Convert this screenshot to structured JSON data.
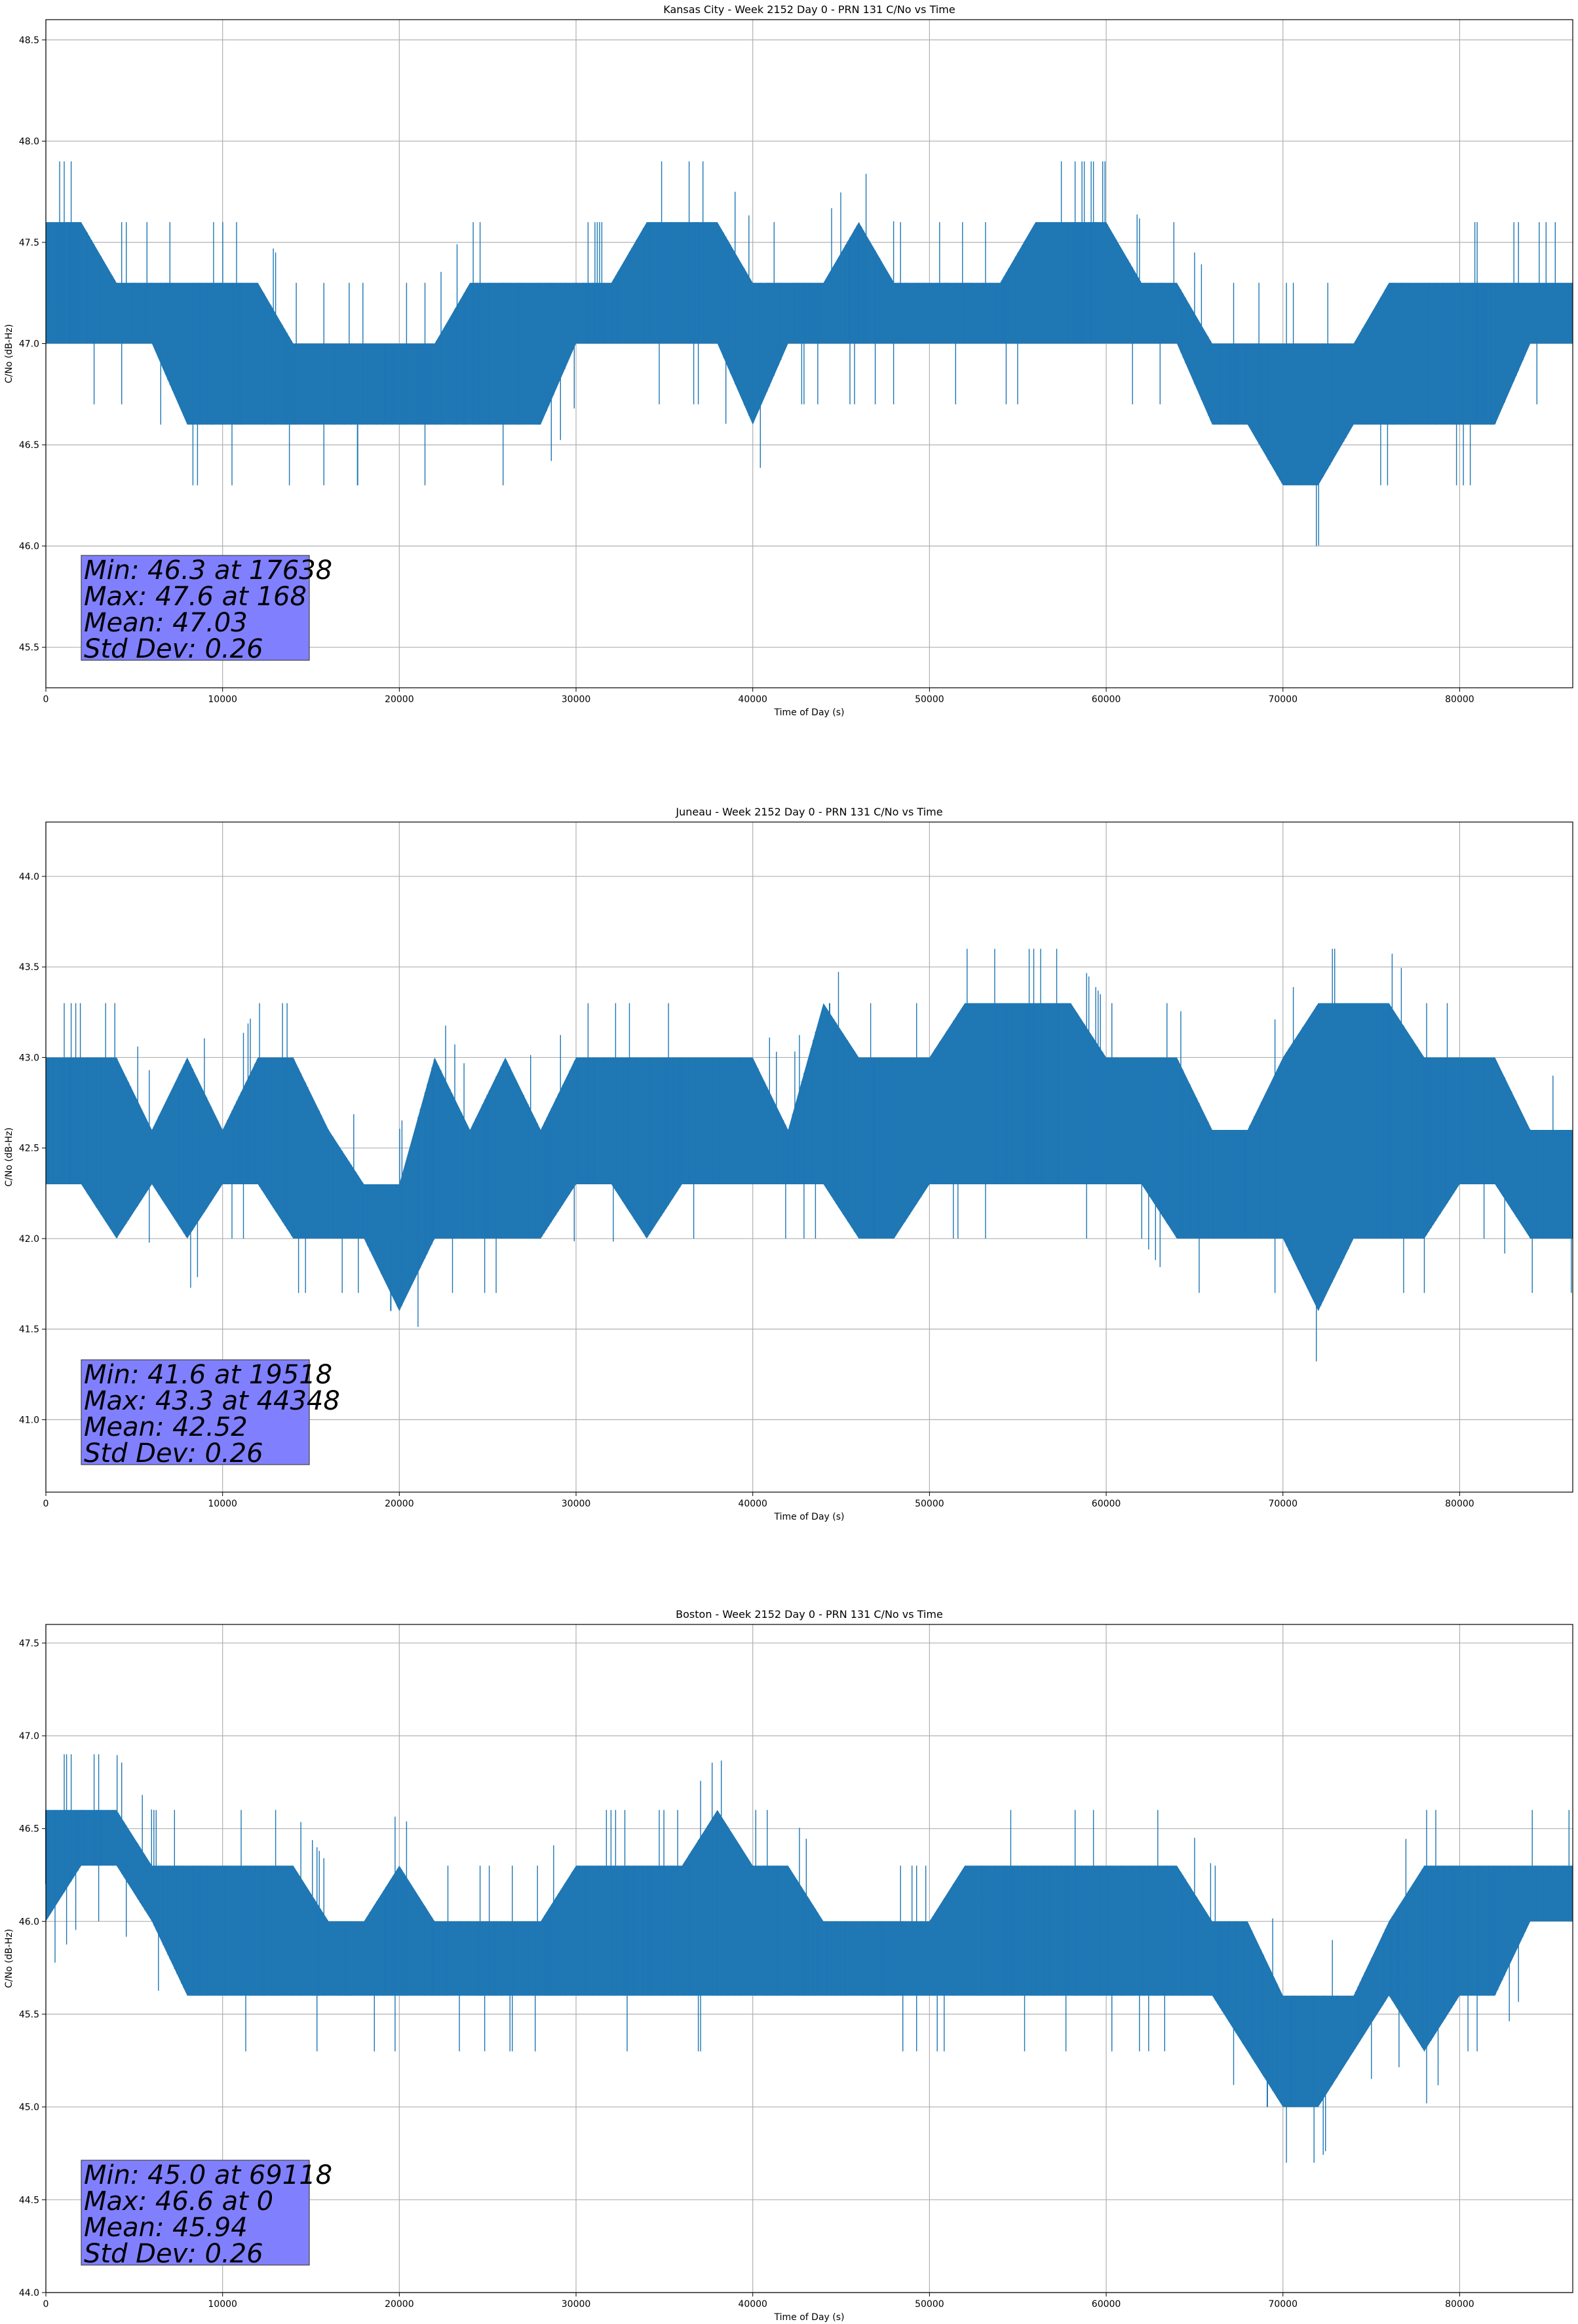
{
  "chart_data": [
    {
      "type": "line",
      "title": "Kansas City - Week 2152 Day 0 - PRN 131 C/No vs Time",
      "xlabel": "Time of Day (s)",
      "ylabel": "C/No (dB-Hz)",
      "xlim": [
        0,
        86400
      ],
      "ylim": [
        45.3,
        48.6
      ],
      "xticks": [
        0,
        10000,
        20000,
        30000,
        40000,
        50000,
        60000,
        70000,
        80000
      ],
      "yticks": [
        45.5,
        46.0,
        46.5,
        47.0,
        47.5,
        48.0,
        48.5
      ],
      "ytick_labels": [
        "45.5",
        "46.0",
        "46.5",
        "47.0",
        "47.5",
        "48.0",
        "48.5"
      ],
      "grid": true,
      "series_color": "#1f77b4",
      "annotation_color": "#8080ff",
      "stats": [
        "Min: 46.3 at 17638",
        "Max: 47.6 at 168",
        "Mean: 47.03",
        "Std Dev: 0.26"
      ],
      "series": [
        {
          "x": [
            0,
            2000,
            4000,
            6000,
            8000,
            10000,
            12000,
            14000,
            16000,
            18000,
            20000,
            22000,
            24000,
            26000,
            28000,
            30000,
            32000,
            34000,
            36000,
            38000,
            40000,
            42000,
            44000,
            46000,
            48000,
            50000,
            52000,
            54000,
            56000,
            58000,
            60000,
            62000,
            64000,
            66000,
            68000,
            70000,
            72000,
            74000,
            76000,
            78000,
            80000,
            82000,
            84000,
            86400
          ],
          "low": [
            47.0,
            47.0,
            47.0,
            47.0,
            46.6,
            46.6,
            46.6,
            46.6,
            46.6,
            46.6,
            46.6,
            46.6,
            46.6,
            46.6,
            46.6,
            47.0,
            47.0,
            47.0,
            47.0,
            47.0,
            46.6,
            47.0,
            47.0,
            47.0,
            47.0,
            47.0,
            47.0,
            47.0,
            47.0,
            47.0,
            47.0,
            47.0,
            47.0,
            46.6,
            46.6,
            46.3,
            46.3,
            46.6,
            46.6,
            46.6,
            46.6,
            46.6,
            47.0,
            47.0
          ],
          "high": [
            47.6,
            47.6,
            47.3,
            47.3,
            47.3,
            47.3,
            47.3,
            47.0,
            47.0,
            47.0,
            47.0,
            47.0,
            47.3,
            47.3,
            47.3,
            47.3,
            47.3,
            47.6,
            47.6,
            47.6,
            47.3,
            47.3,
            47.3,
            47.6,
            47.3,
            47.3,
            47.3,
            47.3,
            47.6,
            47.6,
            47.6,
            47.3,
            47.3,
            47.0,
            47.0,
            47.0,
            47.0,
            47.0,
            47.3,
            47.3,
            47.3,
            47.3,
            47.3,
            47.3
          ],
          "min_point": [
            17638,
            46.3
          ],
          "max_point": [
            168,
            47.6
          ]
        }
      ]
    },
    {
      "type": "line",
      "title": "Juneau - Week 2152 Day 0 - PRN 131 C/No vs Time",
      "xlabel": "Time of Day (s)",
      "ylabel": "C/No (dB-Hz)",
      "xlim": [
        0,
        86400
      ],
      "ylim": [
        40.6,
        44.3
      ],
      "xticks": [
        0,
        10000,
        20000,
        30000,
        40000,
        50000,
        60000,
        70000,
        80000
      ],
      "yticks": [
        41.0,
        41.5,
        42.0,
        42.5,
        43.0,
        43.5,
        44.0
      ],
      "ytick_labels": [
        "41.0",
        "41.5",
        "42.0",
        "42.5",
        "43.0",
        "43.5",
        "44.0"
      ],
      "grid": true,
      "series_color": "#1f77b4",
      "annotation_color": "#8080ff",
      "stats": [
        "Min: 41.6 at 19518",
        "Max: 43.3 at 44348",
        "Mean: 42.52",
        "Std Dev: 0.26"
      ],
      "series": [
        {
          "x": [
            0,
            2000,
            4000,
            6000,
            8000,
            10000,
            12000,
            14000,
            16000,
            18000,
            20000,
            22000,
            24000,
            26000,
            28000,
            30000,
            32000,
            34000,
            36000,
            38000,
            40000,
            42000,
            44000,
            46000,
            48000,
            50000,
            52000,
            54000,
            56000,
            58000,
            60000,
            62000,
            64000,
            66000,
            68000,
            70000,
            72000,
            74000,
            76000,
            78000,
            80000,
            82000,
            84000,
            86400
          ],
          "low": [
            42.3,
            42.3,
            42.0,
            42.3,
            42.0,
            42.3,
            42.3,
            42.0,
            42.0,
            42.0,
            41.6,
            42.0,
            42.0,
            42.0,
            42.0,
            42.3,
            42.3,
            42.0,
            42.3,
            42.3,
            42.3,
            42.3,
            42.3,
            42.0,
            42.0,
            42.3,
            42.3,
            42.3,
            42.3,
            42.3,
            42.3,
            42.3,
            42.0,
            42.0,
            42.0,
            42.0,
            41.6,
            42.0,
            42.0,
            42.0,
            42.3,
            42.3,
            42.0,
            42.0
          ],
          "high": [
            43.0,
            43.0,
            43.0,
            42.6,
            43.0,
            42.6,
            43.0,
            43.0,
            42.6,
            42.3,
            42.3,
            43.0,
            42.6,
            43.0,
            42.6,
            43.0,
            43.0,
            43.0,
            43.0,
            43.0,
            43.0,
            42.6,
            43.3,
            43.0,
            43.0,
            43.0,
            43.3,
            43.3,
            43.3,
            43.3,
            43.0,
            43.0,
            43.0,
            42.6,
            42.6,
            43.0,
            43.3,
            43.3,
            43.3,
            43.0,
            43.0,
            43.0,
            42.6,
            42.6
          ],
          "min_point": [
            19518,
            41.6
          ],
          "max_point": [
            44348,
            43.3
          ]
        }
      ]
    },
    {
      "type": "line",
      "title": "Boston - Week 2152 Day 0 - PRN 131 C/No vs Time",
      "xlabel": "Time of Day (s)",
      "ylabel": "C/No (dB-Hz)",
      "xlim": [
        0,
        86400
      ],
      "ylim": [
        44.0,
        47.6
      ],
      "xticks": [
        0,
        10000,
        20000,
        30000,
        40000,
        50000,
        60000,
        70000,
        80000
      ],
      "yticks": [
        44.0,
        44.5,
        45.0,
        45.5,
        46.0,
        46.5,
        47.0,
        47.5
      ],
      "ytick_labels": [
        "44.0",
        "44.5",
        "45.0",
        "45.5",
        "46.0",
        "46.5",
        "47.0",
        "47.5"
      ],
      "grid": true,
      "series_color": "#1f77b4",
      "annotation_color": "#8080ff",
      "stats": [
        "Min: 45.0 at 69118",
        "Max: 46.6 at 0",
        "Mean: 45.94",
        "Std Dev: 0.26"
      ],
      "series": [
        {
          "x": [
            0,
            2000,
            4000,
            6000,
            8000,
            10000,
            12000,
            14000,
            16000,
            18000,
            20000,
            22000,
            24000,
            26000,
            28000,
            30000,
            32000,
            34000,
            36000,
            38000,
            40000,
            42000,
            44000,
            46000,
            48000,
            50000,
            52000,
            54000,
            56000,
            58000,
            60000,
            62000,
            64000,
            66000,
            68000,
            70000,
            72000,
            74000,
            76000,
            78000,
            80000,
            82000,
            84000,
            86400
          ],
          "low": [
            46.0,
            46.3,
            46.3,
            46.0,
            45.6,
            45.6,
            45.6,
            45.6,
            45.6,
            45.6,
            45.6,
            45.6,
            45.6,
            45.6,
            45.6,
            45.6,
            45.6,
            45.6,
            45.6,
            45.6,
            45.6,
            45.6,
            45.6,
            45.6,
            45.6,
            45.6,
            45.6,
            45.6,
            45.6,
            45.6,
            45.6,
            45.6,
            45.6,
            45.6,
            45.3,
            45.0,
            45.0,
            45.3,
            45.6,
            45.3,
            45.6,
            45.6,
            46.0,
            46.0
          ],
          "high": [
            46.6,
            46.6,
            46.6,
            46.3,
            46.3,
            46.3,
            46.3,
            46.3,
            46.0,
            46.0,
            46.3,
            46.0,
            46.0,
            46.0,
            46.0,
            46.3,
            46.3,
            46.3,
            46.3,
            46.6,
            46.3,
            46.3,
            46.0,
            46.0,
            46.0,
            46.0,
            46.3,
            46.3,
            46.3,
            46.3,
            46.3,
            46.3,
            46.3,
            46.0,
            46.0,
            45.6,
            45.6,
            45.6,
            46.0,
            46.3,
            46.3,
            46.3,
            46.3,
            46.3
          ],
          "min_point": [
            69118,
            45.0
          ],
          "max_point": [
            0,
            46.6
          ]
        }
      ]
    }
  ]
}
